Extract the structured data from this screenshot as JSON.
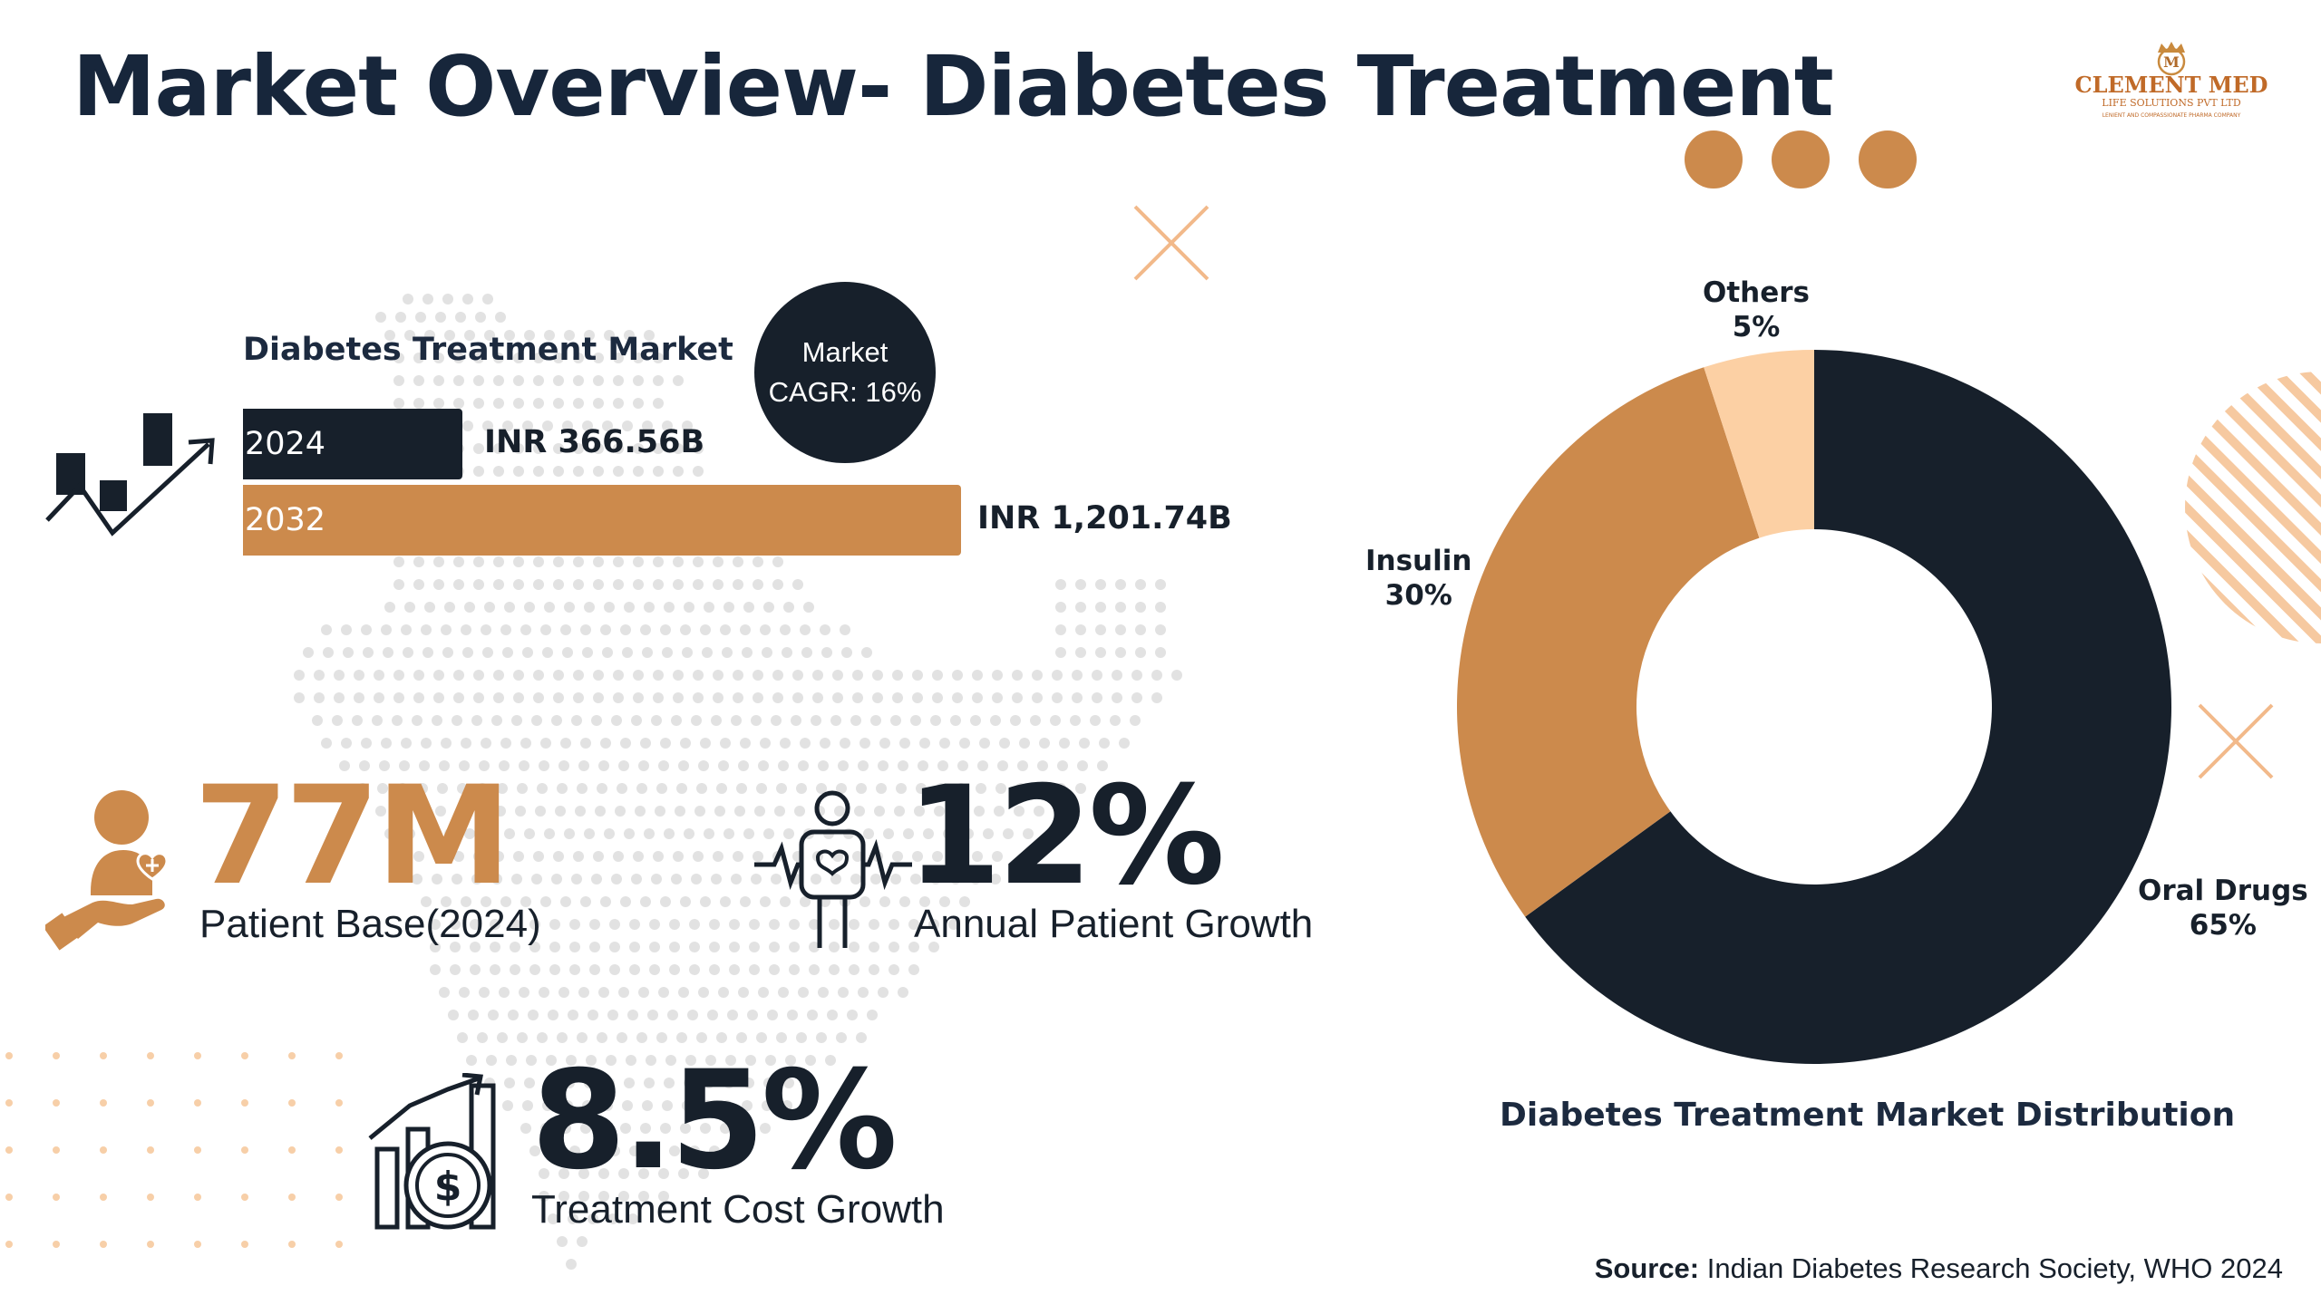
{
  "title": "Market Overview- Diabetes Treatment",
  "logo": {
    "name": "CLEMENT MED",
    "tagline": "LIFE SOLUTIONS PVT LTD",
    "subtagline": "LENIENT AND COMPASSIONATE PHARMA COMPANY"
  },
  "market": {
    "label": "Diabetes Treatment Market",
    "cagr_line1": "Market",
    "cagr_line2": "CAGR: 16%",
    "bars": [
      {
        "year": "2024",
        "value_label": "INR 366.56B"
      },
      {
        "year": "2032",
        "value_label": "INR 1,201.74B"
      }
    ]
  },
  "stats": {
    "patients": {
      "value": "77M",
      "label": "Patient Base(2024)"
    },
    "growth": {
      "value": "12%",
      "label": "Annual Patient Growth"
    },
    "cost": {
      "value": "8.5%",
      "label": "Treatment Cost Growth"
    }
  },
  "chart_data": [
    {
      "type": "bar",
      "title": "Diabetes Treatment Market",
      "categories": [
        "2024",
        "2032"
      ],
      "values": [
        366.56,
        1201.74
      ],
      "unit": "INR B"
    },
    {
      "type": "pie",
      "title": "Diabetes Treatment Market Distribution",
      "categories": [
        "Oral Drugs",
        "Insulin",
        "Others"
      ],
      "values": [
        65,
        30,
        5
      ],
      "value_labels": [
        "65%",
        "30%",
        "5%"
      ],
      "colors": [
        "#17202b",
        "#cc8a4c",
        "#fcd0a4"
      ]
    }
  ],
  "source": {
    "prefix": "Source:",
    "text": "Indian Diabetes Research Society, WHO 2024"
  },
  "colors": {
    "navy": "#17202b",
    "orange": "#cc8a4c",
    "peach": "#fcd0a4",
    "title": "#17263b"
  }
}
